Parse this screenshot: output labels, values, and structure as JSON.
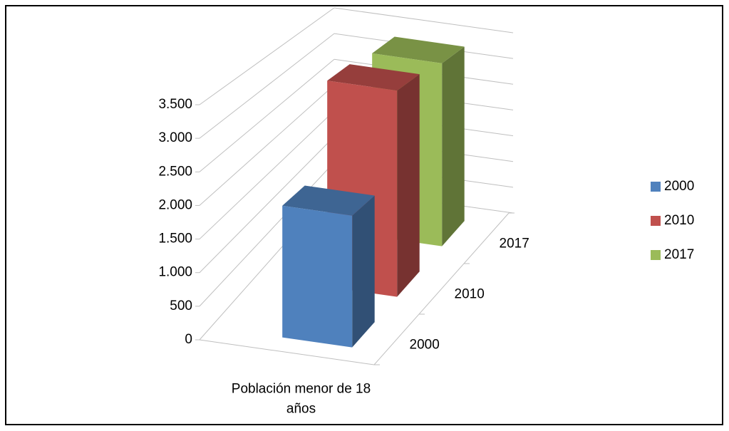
{
  "chart_data": {
    "type": "bar3d",
    "categories": [
      "Población menor de 18 años"
    ],
    "series": [
      {
        "name": "2000",
        "color": "#4f81bd",
        "values": [
          2000
        ]
      },
      {
        "name": "2010",
        "color": "#c0504d",
        "values": [
          3400
        ]
      },
      {
        "name": "2017",
        "color": "#9bbb59",
        "values": [
          3300
        ]
      }
    ],
    "ylim": [
      0,
      3500
    ],
    "yticks": [
      0,
      500,
      {
        "value": 1000,
        "label": "1.000"
      },
      {
        "value": 1500,
        "label": "1.500"
      },
      {
        "value": 2000,
        "label": "2.000"
      },
      {
        "value": 2500,
        "label": "2.500"
      },
      {
        "value": 3000,
        "label": "3.000"
      },
      {
        "value": 3500,
        "label": "3.500"
      }
    ],
    "grid": true,
    "legend": "right"
  }
}
